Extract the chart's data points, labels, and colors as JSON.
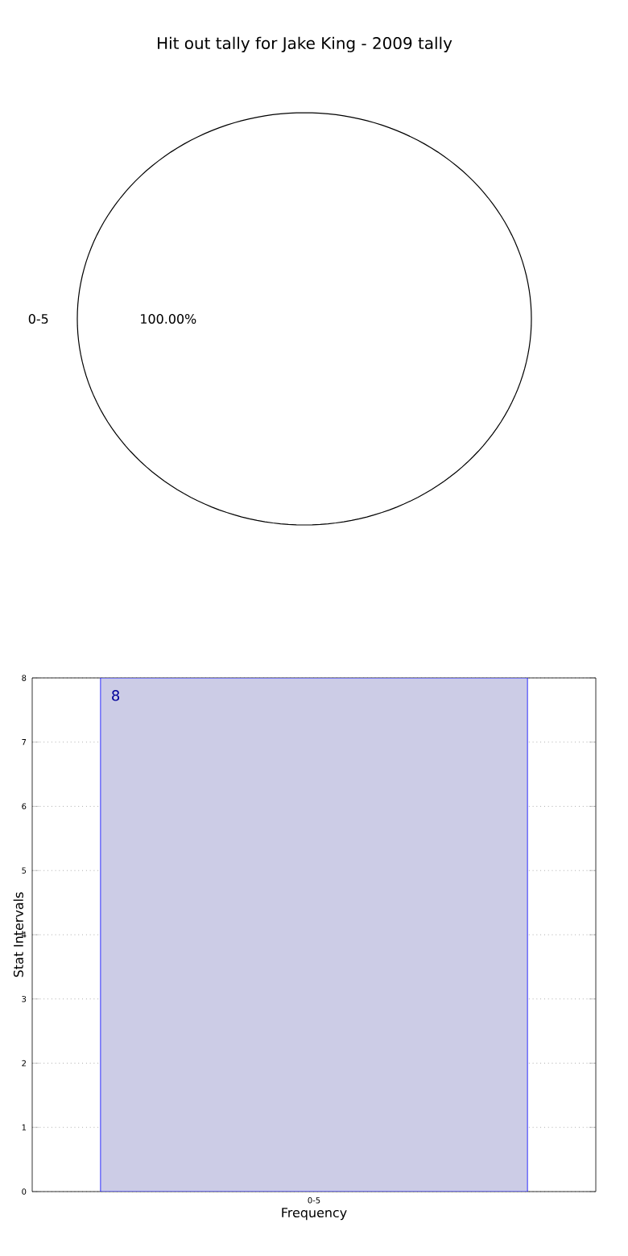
{
  "chart_data": [
    {
      "type": "pie",
      "title": "Hit out tally for Jake King - 2009 tally",
      "categories": [
        "0-5"
      ],
      "values": [
        100
      ],
      "colors": [
        "#ffffff"
      ],
      "value_labels": [
        "100.00%"
      ]
    },
    {
      "type": "bar",
      "categories": [
        "0-5"
      ],
      "values": [
        8
      ],
      "color": "#cccce6",
      "xlabel": "Frequency",
      "ylabel": "Stat Intervals",
      "ylim": [
        0,
        8
      ],
      "yticks": [
        0,
        1,
        2,
        3,
        4,
        5,
        6,
        7,
        8
      ],
      "grid": true,
      "data_labels": true
    }
  ]
}
